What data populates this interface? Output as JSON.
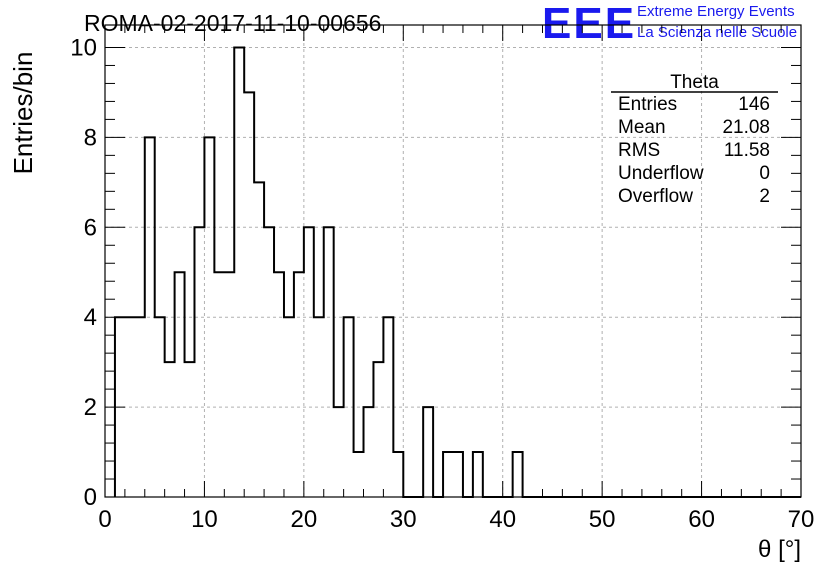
{
  "header": {
    "title": "ROMA-02-2017-11-10-00656",
    "logo_text": "EEE",
    "org_line1": "Extreme Energy Events",
    "org_line2": "La Scienza nelle Scuole",
    "logo_color": "#1a1aee"
  },
  "stats": {
    "name": "Theta",
    "rows": [
      {
        "label": "Entries",
        "value": "146"
      },
      {
        "label": "Mean",
        "value": "21.08"
      },
      {
        "label": "RMS",
        "value": "11.58"
      },
      {
        "label": "Underflow",
        "value": "0"
      },
      {
        "label": "Overflow",
        "value": "2"
      }
    ]
  },
  "chart_data": {
    "type": "bar",
    "style": "step-histogram",
    "title": "ROMA-02-2017-11-10-00656",
    "xlabel": "θ [°]",
    "ylabel": "Entries/bin",
    "xlim": [
      0,
      70
    ],
    "ylim": [
      0,
      10.5
    ],
    "grid": true,
    "xticks": [
      0,
      10,
      20,
      30,
      40,
      50,
      60,
      70
    ],
    "yticks": [
      0,
      2,
      4,
      6,
      8,
      10
    ],
    "bin_edges": [
      1,
      2,
      3,
      4,
      5,
      6,
      7,
      8,
      9,
      10,
      11,
      12,
      13,
      14,
      15,
      16,
      17,
      18,
      19,
      20,
      21,
      22,
      23,
      24,
      25,
      26,
      27,
      28,
      29,
      30,
      31,
      32,
      33,
      34,
      35,
      36,
      37,
      38,
      39,
      40,
      41,
      42,
      43,
      44,
      45,
      46,
      47,
      48,
      49,
      50,
      51,
      52,
      53,
      54,
      55,
      56,
      57,
      58,
      59,
      60,
      61,
      62,
      63,
      64,
      65,
      66,
      67,
      68,
      69
    ],
    "values": [
      4,
      4,
      4,
      8,
      4,
      3,
      5,
      3,
      6,
      8,
      5,
      5,
      10,
      9,
      7,
      6,
      5,
      4,
      5,
      6,
      4,
      6,
      2,
      4,
      1,
      2,
      3,
      4,
      1,
      0,
      0,
      2,
      0,
      1,
      1,
      0,
      1,
      0,
      0,
      0,
      1,
      0,
      0,
      0,
      0,
      0,
      0,
      0,
      0,
      0,
      0,
      0,
      0,
      0,
      0,
      0,
      0,
      0,
      0,
      0,
      0,
      0,
      0,
      0,
      0,
      0,
      0,
      0
    ]
  }
}
